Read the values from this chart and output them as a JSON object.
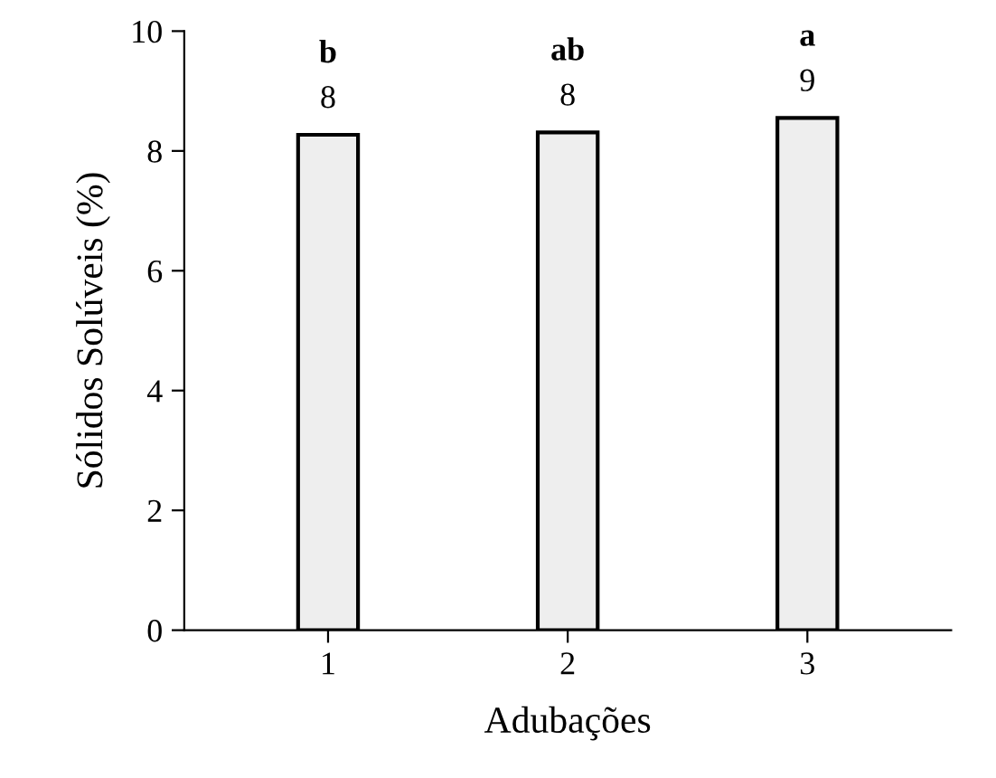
{
  "chart_data": {
    "type": "bar",
    "xlabel": "Adubações",
    "ylabel": "Sólidos Solúveis (%)",
    "categories": [
      "1",
      "2",
      "3"
    ],
    "values": [
      8.27,
      8.31,
      8.55
    ],
    "value_labels": [
      "8",
      "8",
      "9"
    ],
    "color": "#eeeeee",
    "ylim": [
      0,
      10
    ],
    "yticks": [
      0,
      2,
      4,
      6,
      8,
      10
    ],
    "grid": false,
    "legend": false,
    "annotations": [
      {
        "text": "b",
        "x": "1",
        "y": 8.27
      },
      {
        "text": "ab",
        "x": "2",
        "y": 8.31
      },
      {
        "text": "a",
        "x": "3",
        "y": 8.55
      }
    ]
  }
}
